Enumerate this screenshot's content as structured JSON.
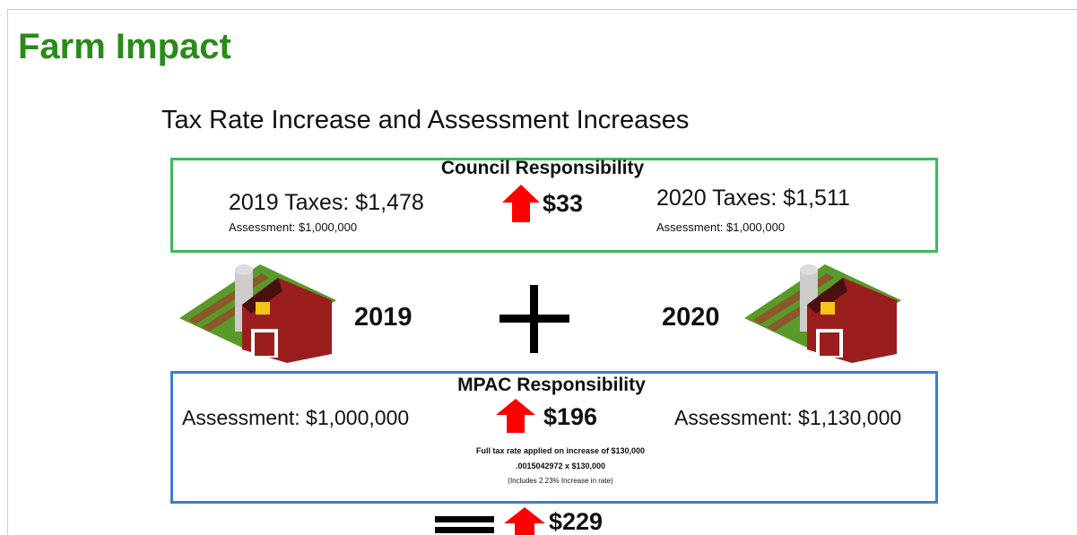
{
  "header": {
    "title": "Farm Impact",
    "subtitle": "Tax Rate Increase and Assessment Increases"
  },
  "council": {
    "heading": "Council Responsibility",
    "left": {
      "taxes": "2019 Taxes: $1,478",
      "assessment": "Assessment: $1,000,000"
    },
    "change": "$33",
    "right": {
      "taxes": "2020 Taxes: $1,511",
      "assessment": "Assessment: $1,000,000"
    }
  },
  "years": {
    "left": "2019",
    "right": "2020"
  },
  "mpac": {
    "heading": "MPAC Responsibility",
    "left": "Assessment: $1,000,000",
    "change": "$196",
    "right": "Assessment: $1,130,000",
    "notes": [
      "Full tax rate applied on increase of $130,000",
      ".0015042972 x $130,000",
      "(Includes 2.23% Increase in rate)"
    ]
  },
  "total": "$229"
}
